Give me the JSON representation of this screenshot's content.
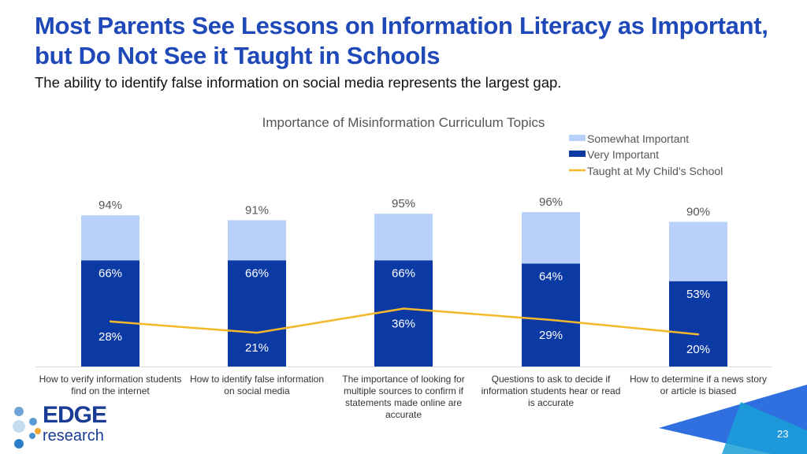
{
  "header": {
    "title": "Most Parents See Lessons on Information Literacy as Important, but Do Not See it Taught in Schools",
    "subtitle": "The ability to identify false information on social media represents the largest gap."
  },
  "chart_data": {
    "type": "bar",
    "title": "Importance of Misinformation Curriculum Topics",
    "categories": [
      "How to verify information students find on the internet",
      "How to identify false information on social media",
      "The importance of looking for multiple sources to confirm if statements made online are accurate",
      "Questions to ask to decide if information students hear or read is accurate",
      "How to determine if a news story or article is biased"
    ],
    "stacked": true,
    "totals": [
      94,
      91,
      95,
      96,
      90
    ],
    "total_labels": [
      "94%",
      "91%",
      "95%",
      "96%",
      "90%"
    ],
    "series": [
      {
        "name": "Somewhat Important",
        "values": [
          28,
          25,
          29,
          32,
          37
        ],
        "color": "#b9d0f8"
      },
      {
        "name": "Very Important",
        "values": [
          66,
          66,
          66,
          64,
          53
        ],
        "labels": [
          "66%",
          "66%",
          "66%",
          "64%",
          "53%"
        ],
        "color": "#0c3aa4"
      },
      {
        "name": "Taught at My Child's School",
        "type": "line",
        "values": [
          28,
          21,
          36,
          29,
          20
        ],
        "labels": [
          "28%",
          "21%",
          "36%",
          "29%",
          "20%"
        ],
        "color": "#f3b92a"
      }
    ],
    "ylim": [
      0,
      100
    ],
    "grid": false,
    "legend": "top-right"
  },
  "footer": {
    "logo": "EDGE research",
    "page_number": "23"
  }
}
